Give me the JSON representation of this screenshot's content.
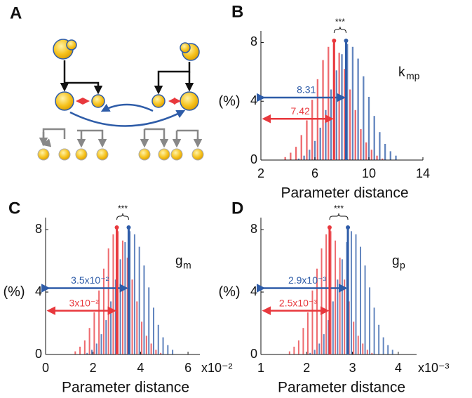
{
  "panel_a_label": "A",
  "chart_data": [
    {
      "type": "histogram",
      "panel_label": "B",
      "xlabel": "Parameter distance",
      "ylabel": "(%)",
      "param": "k",
      "param_sub": "mp",
      "significance": "***",
      "xlim": [
        2,
        14
      ],
      "xticks": [
        2,
        6,
        10,
        14
      ],
      "ylim": [
        0,
        8.5
      ],
      "yticks": [
        0,
        4,
        8
      ],
      "series": [
        {
          "color": "#2e5ca8",
          "mean": 8.31,
          "mean_label": "8.31",
          "bins": [
            4.6,
            5.0,
            5.4,
            5.8,
            6.2,
            6.6,
            7.0,
            7.4,
            7.8,
            8.2,
            8.6,
            9.0,
            9.4,
            9.8,
            10.2,
            10.6,
            11.0,
            11.4,
            11.8,
            12.2
          ],
          "values": [
            0.1,
            0.3,
            0.7,
            1.3,
            2.2,
            3.4,
            4.8,
            6.1,
            7.2,
            7.9,
            7.7,
            6.9,
            5.7,
            4.3,
            3.0,
            1.9,
            1.1,
            0.6,
            0.3
          ]
        },
        {
          "color": "#e8383d",
          "mean": 7.42,
          "mean_label": "7.42",
          "bins": [
            3.6,
            4.0,
            4.4,
            4.8,
            5.2,
            5.6,
            6.0,
            6.4,
            6.8,
            7.2,
            7.6,
            8.0,
            8.4,
            8.8,
            9.2,
            9.6,
            10.0,
            10.4,
            10.8,
            11.2
          ],
          "values": [
            0.2,
            0.5,
            0.9,
            1.7,
            2.7,
            4.1,
            5.5,
            6.8,
            7.7,
            7.9,
            7.3,
            6.2,
            4.8,
            3.4,
            2.1,
            1.2,
            0.7,
            0.3,
            0.1
          ]
        }
      ]
    },
    {
      "type": "histogram",
      "panel_label": "C",
      "xlabel": "Parameter distance",
      "ylabel": "(%)",
      "param": "g",
      "param_sub": "m",
      "significance": "***",
      "x_multiplier": "x10⁻²",
      "xlim": [
        0,
        6.5
      ],
      "xticks": [
        0,
        2,
        4,
        6
      ],
      "ylim": [
        0,
        8.5
      ],
      "yticks": [
        0,
        4,
        8
      ],
      "series": [
        {
          "color": "#2e5ca8",
          "mean": 3.5,
          "mean_label": "3.5x10⁻²",
          "bins": [
            1.65,
            1.85,
            2.05,
            2.25,
            2.45,
            2.65,
            2.85,
            3.05,
            3.25,
            3.45,
            3.65,
            3.85,
            4.05,
            4.25,
            4.45,
            4.65,
            4.85,
            5.05,
            5.25,
            5.45
          ],
          "values": [
            0.1,
            0.3,
            0.7,
            1.3,
            2.2,
            3.4,
            4.8,
            6.1,
            7.2,
            7.9,
            7.7,
            6.9,
            5.7,
            4.3,
            3.0,
            1.9,
            1.1,
            0.6,
            0.3
          ]
        },
        {
          "color": "#e8383d",
          "mean": 3,
          "mean_label": "3x10⁻²",
          "bins": [
            1.15,
            1.35,
            1.55,
            1.75,
            1.95,
            2.15,
            2.35,
            2.55,
            2.75,
            2.95,
            3.15,
            3.35,
            3.55,
            3.75,
            3.95,
            4.15,
            4.35,
            4.55,
            4.75,
            4.95
          ],
          "values": [
            0.2,
            0.5,
            0.9,
            1.7,
            2.7,
            4.1,
            5.5,
            6.8,
            7.7,
            7.9,
            7.3,
            6.2,
            4.8,
            3.4,
            2.1,
            1.2,
            0.7,
            0.3,
            0.1
          ]
        }
      ]
    },
    {
      "type": "histogram",
      "panel_label": "D",
      "xlabel": "Parameter distance",
      "ylabel": "(%)",
      "param": "g",
      "param_sub": "p",
      "significance": "***",
      "x_multiplier": "x10⁻³",
      "xlim": [
        1,
        4.4
      ],
      "xticks": [
        1,
        2,
        3,
        4
      ],
      "ylim": [
        0,
        8.5
      ],
      "yticks": [
        0,
        4,
        8
      ],
      "series": [
        {
          "color": "#2e5ca8",
          "mean": 2.9,
          "mean_label": "2.9x10⁻³",
          "bins": [
            2.025,
            2.125,
            2.225,
            2.325,
            2.425,
            2.525,
            2.625,
            2.725,
            2.825,
            2.925,
            3.025,
            3.125,
            3.225,
            3.325,
            3.425,
            3.525,
            3.625,
            3.725,
            3.825,
            3.925
          ],
          "values": [
            0.1,
            0.3,
            0.7,
            1.3,
            2.2,
            3.4,
            4.8,
            6.1,
            7.2,
            7.9,
            7.7,
            6.9,
            5.7,
            4.3,
            3.0,
            1.9,
            1.1,
            0.6,
            0.3
          ]
        },
        {
          "color": "#e8383d",
          "mean": 2.5,
          "mean_label": "2.5x10⁻³",
          "bins": [
            1.575,
            1.675,
            1.775,
            1.875,
            1.975,
            2.075,
            2.175,
            2.275,
            2.375,
            2.475,
            2.575,
            2.675,
            2.775,
            2.875,
            2.975,
            3.075,
            3.175,
            3.275,
            3.375,
            3.475
          ],
          "values": [
            0.2,
            0.5,
            0.9,
            1.7,
            2.7,
            4.1,
            5.5,
            6.8,
            7.7,
            7.9,
            7.3,
            6.2,
            4.8,
            3.4,
            2.1,
            1.2,
            0.7,
            0.3,
            0.1
          ]
        }
      ]
    }
  ]
}
